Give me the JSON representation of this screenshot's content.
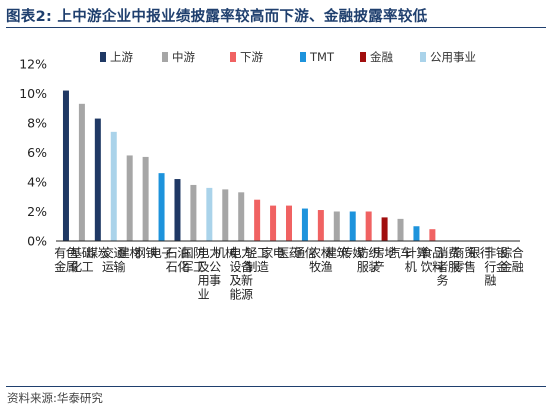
{
  "header": {
    "figure_title": "图表2:  上中游企业中报业绩披露率较高而下游、金融披露率较低"
  },
  "footer": {
    "source": "资料来源:华泰研究"
  },
  "colors": {
    "上游": "#1f3864",
    "中游": "#a6a6a6",
    "下游": "#f06262",
    "TMT": "#1d93dc",
    "金融": "#a10e0e",
    "公用事业": "#aad3ea"
  },
  "chart_data": {
    "type": "bar",
    "title": "",
    "xlabel": "",
    "ylabel": "",
    "ylim": [
      0,
      12
    ],
    "yticks": [
      "0%",
      "2%",
      "4%",
      "6%",
      "8%",
      "10%",
      "12%"
    ],
    "grid": false,
    "legend_position": "top",
    "legend": [
      "上游",
      "中游",
      "下游",
      "TMT",
      "金融",
      "公用事业"
    ],
    "categories": [
      "有色金属",
      "基础化工",
      "煤炭",
      "交通运输",
      "建材",
      "钢铁",
      "电子",
      "石油石化",
      "国防军工",
      "电力及公用事业",
      "机械",
      "电力设备及新能源",
      "轻工制造",
      "家电",
      "医药",
      "通信",
      "农林牧渔",
      "建筑",
      "传媒",
      "纺织服装",
      "房地产",
      "汽车",
      "计算机",
      "食品饮料",
      "消费者服务",
      "商贸零售",
      "银行",
      "非银行金融",
      "综合金融"
    ],
    "values": [
      10.2,
      9.3,
      8.3,
      7.4,
      5.8,
      5.7,
      4.6,
      4.2,
      3.8,
      3.6,
      3.5,
      3.3,
      2.8,
      2.4,
      2.4,
      2.2,
      2.1,
      2.0,
      2.0,
      2.0,
      1.6,
      1.5,
      1.0,
      0.8,
      0,
      0,
      0,
      0,
      0
    ],
    "groups": [
      "上游",
      "中游",
      "上游",
      "公用事业",
      "中游",
      "中游",
      "TMT",
      "上游",
      "中游",
      "公用事业",
      "中游",
      "中游",
      "下游",
      "下游",
      "下游",
      "TMT",
      "下游",
      "中游",
      "TMT",
      "下游",
      "金融",
      "中游",
      "TMT",
      "下游",
      "下游",
      "下游",
      "金融",
      "金融",
      "中游"
    ],
    "unit": "%"
  }
}
